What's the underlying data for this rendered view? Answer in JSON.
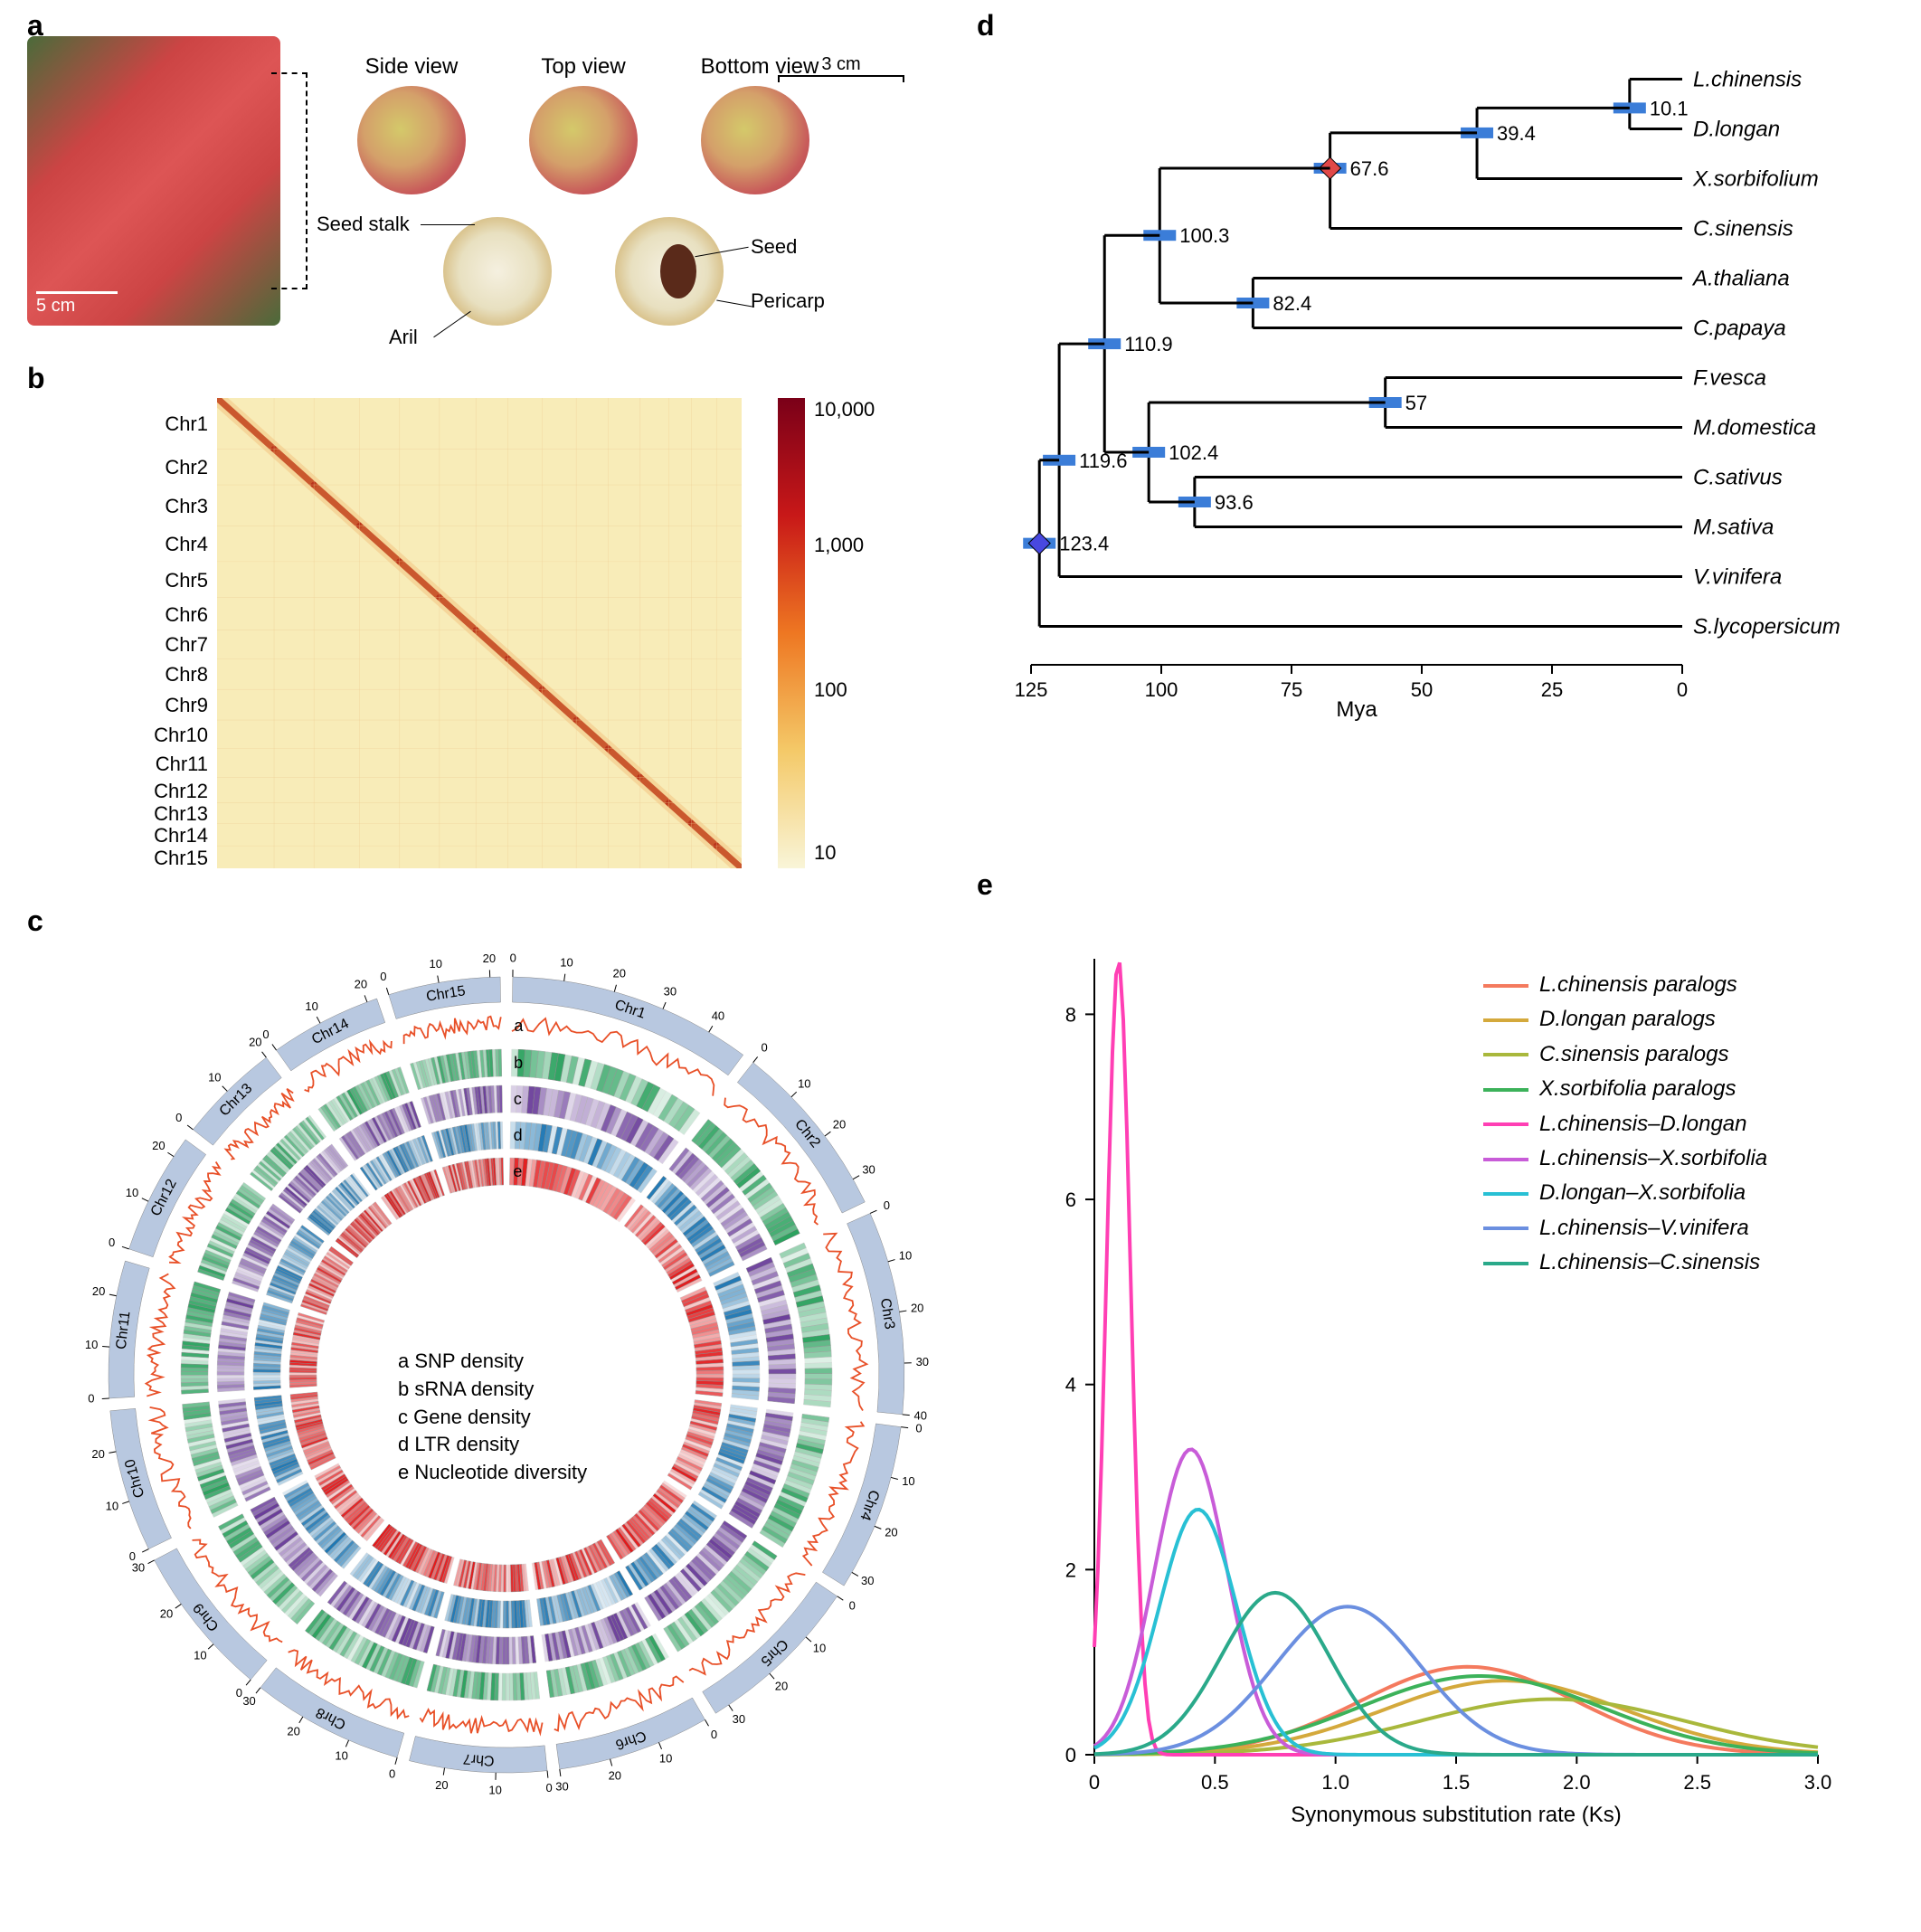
{
  "panel_labels": {
    "a": "a",
    "b": "b",
    "c": "c",
    "d": "d",
    "e": "e"
  },
  "panel_a": {
    "scale_cluster": "5 cm",
    "scale_top": "3 cm",
    "views": {
      "side": "Side view",
      "top": "Top view",
      "bottom": "Bottom view"
    },
    "annotations": {
      "seed_stalk": "Seed stalk",
      "aril": "Aril",
      "seed": "Seed",
      "pericarp": "Pericarp"
    }
  },
  "panel_b": {
    "type": "heatmap",
    "chromosomes": [
      "Chr1",
      "Chr2",
      "Chr3",
      "Chr4",
      "Chr5",
      "Chr6",
      "Chr7",
      "Chr8",
      "Chr9",
      "Chr10",
      "Chr11",
      "Chr12",
      "Chr13",
      "Chr14",
      "Chr15"
    ],
    "chr_sizes": [
      50,
      35,
      40,
      35,
      35,
      32,
      28,
      30,
      30,
      28,
      28,
      25,
      20,
      22,
      22
    ],
    "colorbar_ticks": [
      "10,000",
      "1,000",
      "100",
      "10"
    ],
    "colorbar_min": 10,
    "colorbar_max": 10000,
    "background_color": "#f8ecb8",
    "diagonal_color": "#b83018",
    "colorbar_gradient": [
      "#7a0018",
      "#c81818",
      "#ee7722",
      "#f4c968",
      "#f9f5d8"
    ]
  },
  "panel_c": {
    "type": "circos",
    "chromosomes": [
      "Chr1",
      "Chr2",
      "Chr3",
      "Chr4",
      "Chr5",
      "Chr6",
      "Chr7",
      "Chr8",
      "Chr9",
      "Chr10",
      "Chr11",
      "Chr12",
      "Chr13",
      "Chr14",
      "Chr15"
    ],
    "chr_sizes": [
      48,
      35,
      40,
      33,
      33,
      30,
      27,
      30,
      30,
      28,
      27,
      24,
      20,
      22,
      22
    ],
    "tick_step": 10,
    "tracks": [
      {
        "id": "a",
        "label": "a SNP density",
        "color": "#e85028",
        "style": "line"
      },
      {
        "id": "b",
        "label": "b sRNA density",
        "color": "#2ca25f",
        "style": "heat"
      },
      {
        "id": "c",
        "label": "c Gene density",
        "color": "#6a3d9a",
        "style": "heat"
      },
      {
        "id": "d",
        "label": "d LTR density",
        "color": "#1f78b4",
        "style": "heat"
      },
      {
        "id": "e",
        "label": "e Nucleotide diversity",
        "color": "#e31a1c",
        "style": "heat"
      }
    ],
    "ideogram_color": "#b8c8e0",
    "track_letters_pos": "right"
  },
  "panel_d": {
    "type": "tree",
    "xaxis": {
      "label": "Mya",
      "ticks": [
        125,
        100,
        75,
        50,
        25,
        0
      ]
    },
    "species": [
      "L.chinensis",
      "D.longan",
      "X.sorbifolium",
      "C.sinensis",
      "A.thaliana",
      "C.papaya",
      "F.vesca",
      "M.domestica",
      "C.sativus",
      "M.sativa",
      "V.vinifera",
      "S.lycopersicum"
    ],
    "nodes": [
      {
        "age": 10.1,
        "y": 0.58,
        "children": [
          0,
          1
        ]
      },
      {
        "age": 39.4,
        "y": 1.08,
        "children": [
          "n0",
          2
        ]
      },
      {
        "age": 67.6,
        "y": 1.79,
        "children": [
          "n1",
          3
        ],
        "marker": "red-diamond"
      },
      {
        "age": 82.4,
        "y": 4.5,
        "children": [
          4,
          5
        ]
      },
      {
        "age": 100.3,
        "y": 3.14,
        "children": [
          "n2",
          "n3"
        ]
      },
      {
        "age": 57.0,
        "y": 6.5,
        "children": [
          6,
          7
        ]
      },
      {
        "age": 93.6,
        "y": 8.5,
        "children": [
          8,
          9
        ]
      },
      {
        "age": 102.4,
        "y": 7.5,
        "children": [
          "n5",
          "n6"
        ]
      },
      {
        "age": 110.9,
        "y": 5.32,
        "children": [
          "n4",
          "n7"
        ]
      },
      {
        "age": 119.6,
        "y": 7.66,
        "children": [
          "n8",
          10
        ]
      },
      {
        "age": 123.4,
        "y": 9.33,
        "children": [
          "n9",
          11
        ],
        "marker": "blue-diamond"
      }
    ],
    "ci_bar_color": "#3b7dd8",
    "line_color": "#000000",
    "marker_colors": {
      "red-diamond": "#e04848",
      "blue-diamond": "#4848e0"
    }
  },
  "panel_e": {
    "type": "line",
    "xlabel": "Synonymous substitution rate (Ks)",
    "xlim": [
      0,
      3.0
    ],
    "xtick_step": 0.5,
    "ylim": [
      0,
      8.6
    ],
    "ytick_step": 2,
    "series": [
      {
        "label": "L.chinensis paralogs",
        "color": "#f47a5e",
        "peak_x": 1.55,
        "peak_y": 0.95,
        "width": 0.9
      },
      {
        "label": "D.longan paralogs",
        "color": "#d4a93c",
        "peak_x": 1.7,
        "peak_y": 0.8,
        "width": 1.0
      },
      {
        "label": "C.sinensis paralogs",
        "color": "#a9b83c",
        "peak_x": 1.9,
        "peak_y": 0.6,
        "width": 1.1
      },
      {
        "label": "X.sorbifolia paralogs",
        "color": "#3cb25a",
        "peak_x": 1.6,
        "peak_y": 0.85,
        "width": 1.0
      },
      {
        "label": "L.chinensis–D.longan",
        "color": "#ff3fb4",
        "peak_x": 0.1,
        "peak_y": 8.6,
        "width": 0.1
      },
      {
        "label": "L.chinensis–X.sorbifolia",
        "color": "#c85cd8",
        "peak_x": 0.4,
        "peak_y": 3.3,
        "width": 0.3
      },
      {
        "label": "D.longan–X.sorbifolia",
        "color": "#28c0d4",
        "peak_x": 0.43,
        "peak_y": 2.65,
        "width": 0.32
      },
      {
        "label": "L.chinensis–V.vinifera",
        "color": "#6b8fe0",
        "peak_x": 1.05,
        "peak_y": 1.6,
        "width": 0.6
      },
      {
        "label": "L.chinensis–C.sinensis",
        "color": "#2aa98a",
        "peak_x": 0.75,
        "peak_y": 1.75,
        "width": 0.45
      }
    ],
    "line_width": 4,
    "axis_color": "#000000",
    "background_color": "#ffffff"
  }
}
